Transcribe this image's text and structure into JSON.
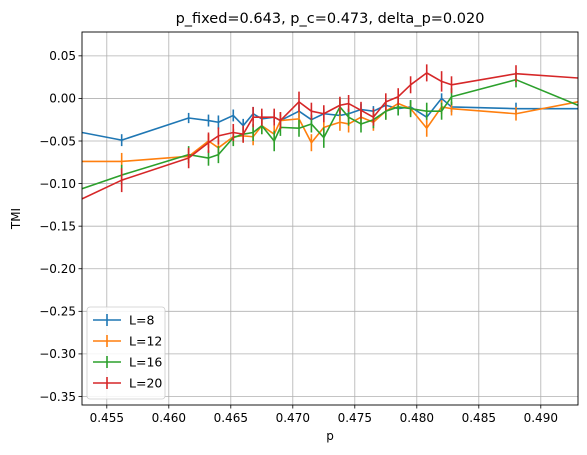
{
  "chart_data": {
    "type": "line",
    "title": "p_fixed=0.643, p_c=0.473, delta_p=0.020",
    "xlabel": "p",
    "ylabel": "TMI",
    "xlim": [
      0.453,
      0.493
    ],
    "ylim": [
      -0.36,
      0.078
    ],
    "xticks": [
      "0.455",
      "0.460",
      "0.465",
      "0.470",
      "0.475",
      "0.480",
      "0.485",
      "0.490"
    ],
    "yticks": [
      "0.05",
      "0.00",
      "−0.05",
      "−0.10",
      "−0.15",
      "−0.20",
      "−0.25",
      "−0.30",
      "−0.35"
    ],
    "grid": true,
    "legend_position": "lower-left",
    "series": [
      {
        "name": "L=8",
        "color": "#1f77b4",
        "x": [
          0.453,
          0.4562,
          0.4616,
          0.4632,
          0.464,
          0.4652,
          0.466,
          0.4668,
          0.4675,
          0.4685,
          0.469,
          0.4705,
          0.4715,
          0.4725,
          0.4738,
          0.4745,
          0.4755,
          0.4765,
          0.4775,
          0.4785,
          0.4795,
          0.4808,
          0.482,
          0.4828,
          0.488,
          0.493
        ],
        "y": [
          -0.04,
          -0.049,
          -0.023,
          -0.026,
          -0.028,
          -0.02,
          -0.032,
          -0.018,
          -0.024,
          -0.022,
          -0.026,
          -0.015,
          -0.025,
          -0.018,
          -0.02,
          -0.018,
          -0.013,
          -0.015,
          -0.008,
          -0.012,
          -0.01,
          -0.022,
          0.0,
          -0.01,
          -0.012,
          -0.012
        ],
        "yerr": [
          0,
          0.007,
          0.006,
          0.007,
          0.008,
          0.007,
          0.008,
          0.008,
          0.007,
          0.006,
          0.007,
          0.008,
          0.006,
          0.006,
          0.006,
          0.006,
          0.007,
          0.006,
          0.007,
          0.008,
          0.008,
          0.006,
          0.006,
          0.006,
          0.007,
          0
        ]
      },
      {
        "name": "L=12",
        "color": "#ff7f0e",
        "x": [
          0.453,
          0.4562,
          0.4616,
          0.4632,
          0.464,
          0.4652,
          0.466,
          0.4668,
          0.4675,
          0.4685,
          0.469,
          0.4705,
          0.4715,
          0.4725,
          0.4738,
          0.4745,
          0.4755,
          0.4765,
          0.4775,
          0.4785,
          0.4795,
          0.4808,
          0.482,
          0.4828,
          0.488,
          0.493
        ],
        "y": [
          -0.074,
          -0.074,
          -0.068,
          -0.05,
          -0.058,
          -0.045,
          -0.044,
          -0.045,
          -0.032,
          -0.042,
          -0.026,
          -0.024,
          -0.052,
          -0.034,
          -0.028,
          -0.03,
          -0.022,
          -0.028,
          -0.015,
          -0.006,
          -0.012,
          -0.035,
          -0.01,
          -0.012,
          -0.018,
          -0.004
        ],
        "yerr": [
          0,
          0.01,
          0.008,
          0.008,
          0.01,
          0.01,
          0.008,
          0.01,
          0.01,
          0.01,
          0.01,
          0.01,
          0.01,
          0.01,
          0.01,
          0.01,
          0.01,
          0.01,
          0.01,
          0.008,
          0.008,
          0.01,
          0.008,
          0.008,
          0.008,
          0
        ]
      },
      {
        "name": "L=16",
        "color": "#2ca02c",
        "x": [
          0.453,
          0.4562,
          0.4616,
          0.4632,
          0.464,
          0.4652,
          0.466,
          0.4668,
          0.4675,
          0.4685,
          0.469,
          0.4705,
          0.4715,
          0.4725,
          0.4738,
          0.4745,
          0.4755,
          0.4765,
          0.4775,
          0.4785,
          0.4795,
          0.4808,
          0.482,
          0.4828,
          0.488,
          0.493
        ],
        "y": [
          -0.106,
          -0.09,
          -0.066,
          -0.07,
          -0.066,
          -0.046,
          -0.042,
          -0.04,
          -0.032,
          -0.05,
          -0.034,
          -0.035,
          -0.03,
          -0.046,
          -0.01,
          -0.022,
          -0.03,
          -0.025,
          -0.015,
          -0.01,
          -0.012,
          -0.015,
          -0.015,
          0.002,
          0.022,
          -0.008
        ],
        "yerr": [
          0,
          0.012,
          0.01,
          0.009,
          0.01,
          0.01,
          0.009,
          0.01,
          0.01,
          0.012,
          0.01,
          0.01,
          0.01,
          0.012,
          0.01,
          0.01,
          0.01,
          0.01,
          0.01,
          0.01,
          0.01,
          0.01,
          0.01,
          0.01,
          0.009,
          0
        ]
      },
      {
        "name": "L=20",
        "color": "#d62728",
        "x": [
          0.453,
          0.4562,
          0.4616,
          0.4632,
          0.464,
          0.4652,
          0.466,
          0.4668,
          0.4675,
          0.4685,
          0.469,
          0.4705,
          0.4715,
          0.4725,
          0.4738,
          0.4745,
          0.4755,
          0.4765,
          0.4775,
          0.4785,
          0.4795,
          0.4808,
          0.482,
          0.4828,
          0.488,
          0.493
        ],
        "y": [
          -0.118,
          -0.096,
          -0.07,
          -0.052,
          -0.044,
          -0.04,
          -0.042,
          -0.022,
          -0.022,
          -0.022,
          -0.026,
          -0.004,
          -0.015,
          -0.018,
          -0.008,
          -0.006,
          -0.014,
          -0.022,
          -0.004,
          0.002,
          0.016,
          0.03,
          0.02,
          0.016,
          0.029,
          0.024
        ],
        "yerr": [
          0,
          0.014,
          0.012,
          0.012,
          0.01,
          0.01,
          0.01,
          0.012,
          0.01,
          0.01,
          0.01,
          0.012,
          0.01,
          0.01,
          0.01,
          0.01,
          0.01,
          0.01,
          0.01,
          0.01,
          0.01,
          0.01,
          0.012,
          0.01,
          0.01,
          0
        ]
      }
    ]
  }
}
